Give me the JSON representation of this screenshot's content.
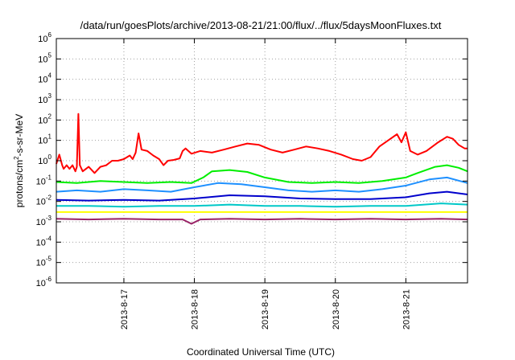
{
  "chart_data": {
    "type": "line",
    "title": "/data/run/goesPlots/archive/2013-08-21/21:00/flux/../flux/5daysMoonFluxes.txt",
    "xlabel": "Coordinated Universal Time (UTC)",
    "ylabel": "protons/cm²-s-sr-MeV",
    "ylabel_parts": {
      "before": "protons/cm",
      "sup": "2",
      "after": "-s-sr-MeV"
    },
    "y_scale": "log",
    "ylim": [
      1e-06,
      1000000.0
    ],
    "y_ticks": [
      {
        "exp": -6,
        "base": "10",
        "sup": "-6"
      },
      {
        "exp": -5,
        "base": "10",
        "sup": "-5"
      },
      {
        "exp": -4,
        "base": "10",
        "sup": "-4"
      },
      {
        "exp": -3,
        "base": "10",
        "sup": "-3"
      },
      {
        "exp": -2,
        "base": "10",
        "sup": "-2"
      },
      {
        "exp": -1,
        "base": "10",
        "sup": "-1"
      },
      {
        "exp": 0,
        "base": "10",
        "sup": "0"
      },
      {
        "exp": 1,
        "base": "10",
        "sup": "1"
      },
      {
        "exp": 2,
        "base": "10",
        "sup": "2"
      },
      {
        "exp": 3,
        "base": "10",
        "sup": "3"
      },
      {
        "exp": 4,
        "base": "10",
        "sup": "4"
      },
      {
        "exp": 5,
        "base": "10",
        "sup": "5"
      },
      {
        "exp": 6,
        "base": "10",
        "sup": "6"
      }
    ],
    "xlim": [
      "2013-08-16T01:00",
      "2013-08-21T21:00"
    ],
    "x_ticks": [
      "2013-8-17",
      "2013-8-18",
      "2013-8-19",
      "2013-8-20",
      "2013-8-21"
    ],
    "x_tick_dates": [
      "2013-08-17",
      "2013-08-18",
      "2013-08-19",
      "2013-08-20",
      "2013-08-21"
    ],
    "grid": true,
    "series": [
      {
        "color": "#ff0000",
        "points": [
          [
            "2013-08-16T01:00",
            0.7
          ],
          [
            "2013-08-16T02:00",
            2.0
          ],
          [
            "2013-08-16T03:00",
            0.6
          ],
          [
            "2013-08-16T03:30",
            0.4
          ],
          [
            "2013-08-16T04:30",
            0.6
          ],
          [
            "2013-08-16T05:30",
            0.4
          ],
          [
            "2013-08-16T06:30",
            0.6
          ],
          [
            "2013-08-16T07:30",
            0.3
          ],
          [
            "2013-08-16T08:00",
            0.5
          ],
          [
            "2013-08-16T08:30",
            200
          ],
          [
            "2013-08-16T09:00",
            0.6
          ],
          [
            "2013-08-16T10:00",
            0.3
          ],
          [
            "2013-08-16T12:00",
            0.5
          ],
          [
            "2013-08-16T14:00",
            0.25
          ],
          [
            "2013-08-16T16:00",
            0.5
          ],
          [
            "2013-08-16T18:00",
            0.6
          ],
          [
            "2013-08-16T20:00",
            1.0
          ],
          [
            "2013-08-16T22:00",
            1.0
          ],
          [
            "2013-08-17T00:00",
            1.2
          ],
          [
            "2013-08-17T02:00",
            1.8
          ],
          [
            "2013-08-17T03:00",
            1.2
          ],
          [
            "2013-08-17T04:00",
            2.5
          ],
          [
            "2013-08-17T05:00",
            22
          ],
          [
            "2013-08-17T06:00",
            3.5
          ],
          [
            "2013-08-17T08:00",
            3.0
          ],
          [
            "2013-08-17T10:00",
            1.8
          ],
          [
            "2013-08-17T12:00",
            1.2
          ],
          [
            "2013-08-17T13:30",
            0.6
          ],
          [
            "2013-08-17T15:00",
            1.0
          ],
          [
            "2013-08-17T17:00",
            1.1
          ],
          [
            "2013-08-17T19:00",
            1.3
          ],
          [
            "2013-08-17T20:00",
            3.0
          ],
          [
            "2013-08-17T21:00",
            4.0
          ],
          [
            "2013-08-17T23:00",
            2.2
          ],
          [
            "2013-08-18T02:00",
            3.0
          ],
          [
            "2013-08-18T06:00",
            2.5
          ],
          [
            "2013-08-18T10:00",
            3.5
          ],
          [
            "2013-08-18T14:00",
            5.0
          ],
          [
            "2013-08-18T18:00",
            7.0
          ],
          [
            "2013-08-18T22:00",
            6.0
          ],
          [
            "2013-08-19T02:00",
            3.5
          ],
          [
            "2013-08-19T06:00",
            2.5
          ],
          [
            "2013-08-19T10:00",
            3.5
          ],
          [
            "2013-08-19T14:00",
            5.0
          ],
          [
            "2013-08-19T18:00",
            4.0
          ],
          [
            "2013-08-19T22:00",
            3.0
          ],
          [
            "2013-08-20T02:00",
            2.0
          ],
          [
            "2013-08-20T06:00",
            1.2
          ],
          [
            "2013-08-20T09:00",
            1.0
          ],
          [
            "2013-08-20T12:00",
            1.5
          ],
          [
            "2013-08-20T15:00",
            5.0
          ],
          [
            "2013-08-20T18:00",
            10
          ],
          [
            "2013-08-20T21:00",
            20
          ],
          [
            "2013-08-20T22:30",
            8
          ],
          [
            "2013-08-21T00:00",
            25
          ],
          [
            "2013-08-21T01:30",
            3
          ],
          [
            "2013-08-21T04:00",
            2
          ],
          [
            "2013-08-21T07:00",
            3
          ],
          [
            "2013-08-21T11:00",
            8
          ],
          [
            "2013-08-21T14:00",
            15
          ],
          [
            "2013-08-21T16:00",
            12
          ],
          [
            "2013-08-21T18:00",
            6
          ],
          [
            "2013-08-21T20:00",
            4
          ],
          [
            "2013-08-21T21:00",
            4
          ]
        ]
      },
      {
        "color": "#00ee00",
        "points": [
          [
            "2013-08-16T01:00",
            0.09
          ],
          [
            "2013-08-16T08:00",
            0.08
          ],
          [
            "2013-08-16T16:00",
            0.1
          ],
          [
            "2013-08-17T00:00",
            0.09
          ],
          [
            "2013-08-17T08:00",
            0.08
          ],
          [
            "2013-08-17T16:00",
            0.09
          ],
          [
            "2013-08-17T23:00",
            0.08
          ],
          [
            "2013-08-18T03:00",
            0.15
          ],
          [
            "2013-08-18T06:00",
            0.3
          ],
          [
            "2013-08-18T12:00",
            0.35
          ],
          [
            "2013-08-18T18:00",
            0.28
          ],
          [
            "2013-08-19T00:00",
            0.15
          ],
          [
            "2013-08-19T08:00",
            0.09
          ],
          [
            "2013-08-19T16:00",
            0.08
          ],
          [
            "2013-08-20T00:00",
            0.09
          ],
          [
            "2013-08-20T08:00",
            0.08
          ],
          [
            "2013-08-20T16:00",
            0.1
          ],
          [
            "2013-08-21T00:00",
            0.15
          ],
          [
            "2013-08-21T04:00",
            0.25
          ],
          [
            "2013-08-21T10:00",
            0.5
          ],
          [
            "2013-08-21T14:00",
            0.6
          ],
          [
            "2013-08-21T18:00",
            0.45
          ],
          [
            "2013-08-21T21:00",
            0.3
          ]
        ]
      },
      {
        "color": "#1e90ff",
        "points": [
          [
            "2013-08-16T01:00",
            0.03
          ],
          [
            "2013-08-16T08:00",
            0.035
          ],
          [
            "2013-08-16T16:00",
            0.03
          ],
          [
            "2013-08-17T00:00",
            0.04
          ],
          [
            "2013-08-17T08:00",
            0.035
          ],
          [
            "2013-08-17T16:00",
            0.03
          ],
          [
            "2013-08-18T00:00",
            0.05
          ],
          [
            "2013-08-18T08:00",
            0.08
          ],
          [
            "2013-08-18T16:00",
            0.07
          ],
          [
            "2013-08-19T00:00",
            0.05
          ],
          [
            "2013-08-19T08:00",
            0.035
          ],
          [
            "2013-08-19T16:00",
            0.03
          ],
          [
            "2013-08-20T00:00",
            0.035
          ],
          [
            "2013-08-20T08:00",
            0.03
          ],
          [
            "2013-08-20T16:00",
            0.04
          ],
          [
            "2013-08-21T00:00",
            0.06
          ],
          [
            "2013-08-21T08:00",
            0.12
          ],
          [
            "2013-08-21T14:00",
            0.15
          ],
          [
            "2013-08-21T21:00",
            0.08
          ]
        ]
      },
      {
        "color": "#0000cc",
        "points": [
          [
            "2013-08-16T01:00",
            0.012
          ],
          [
            "2013-08-16T12:00",
            0.011
          ],
          [
            "2013-08-17T00:00",
            0.012
          ],
          [
            "2013-08-17T12:00",
            0.011
          ],
          [
            "2013-08-18T00:00",
            0.014
          ],
          [
            "2013-08-18T12:00",
            0.02
          ],
          [
            "2013-08-19T00:00",
            0.018
          ],
          [
            "2013-08-19T12:00",
            0.014
          ],
          [
            "2013-08-20T00:00",
            0.013
          ],
          [
            "2013-08-20T12:00",
            0.013
          ],
          [
            "2013-08-21T00:00",
            0.016
          ],
          [
            "2013-08-21T08:00",
            0.025
          ],
          [
            "2013-08-21T14:00",
            0.03
          ],
          [
            "2013-08-21T21:00",
            0.022
          ]
        ]
      },
      {
        "color": "#00c8c8",
        "points": [
          [
            "2013-08-16T01:00",
            0.006
          ],
          [
            "2013-08-16T12:00",
            0.006
          ],
          [
            "2013-08-17T00:00",
            0.0055
          ],
          [
            "2013-08-17T12:00",
            0.006
          ],
          [
            "2013-08-18T00:00",
            0.006
          ],
          [
            "2013-08-18T12:00",
            0.007
          ],
          [
            "2013-08-19T00:00",
            0.006
          ],
          [
            "2013-08-19T12:00",
            0.006
          ],
          [
            "2013-08-20T00:00",
            0.0055
          ],
          [
            "2013-08-20T12:00",
            0.006
          ],
          [
            "2013-08-21T00:00",
            0.006
          ],
          [
            "2013-08-21T12:00",
            0.008
          ],
          [
            "2013-08-21T21:00",
            0.007
          ]
        ]
      },
      {
        "color": "#ffff00",
        "points": [
          [
            "2013-08-16T01:00",
            0.003
          ],
          [
            "2013-08-17T00:00",
            0.003
          ],
          [
            "2013-08-18T00:00",
            0.003
          ],
          [
            "2013-08-19T00:00",
            0.003
          ],
          [
            "2013-08-20T00:00",
            0.003
          ],
          [
            "2013-08-21T00:00",
            0.003
          ],
          [
            "2013-08-21T21:00",
            0.003
          ]
        ]
      },
      {
        "color": "#992266",
        "points": [
          [
            "2013-08-16T01:00",
            0.0014
          ],
          [
            "2013-08-16T12:00",
            0.0013
          ],
          [
            "2013-08-17T00:00",
            0.0014
          ],
          [
            "2013-08-17T12:00",
            0.0013
          ],
          [
            "2013-08-17T20:00",
            0.0013
          ],
          [
            "2013-08-17T23:00",
            0.0008
          ],
          [
            "2013-08-18T02:00",
            0.0013
          ],
          [
            "2013-08-18T12:00",
            0.0014
          ],
          [
            "2013-08-19T00:00",
            0.0013
          ],
          [
            "2013-08-19T12:00",
            0.0014
          ],
          [
            "2013-08-20T00:00",
            0.0013
          ],
          [
            "2013-08-20T12:00",
            0.0014
          ],
          [
            "2013-08-21T00:00",
            0.0013
          ],
          [
            "2013-08-21T12:00",
            0.0014
          ],
          [
            "2013-08-21T21:00",
            0.0013
          ]
        ]
      }
    ]
  }
}
